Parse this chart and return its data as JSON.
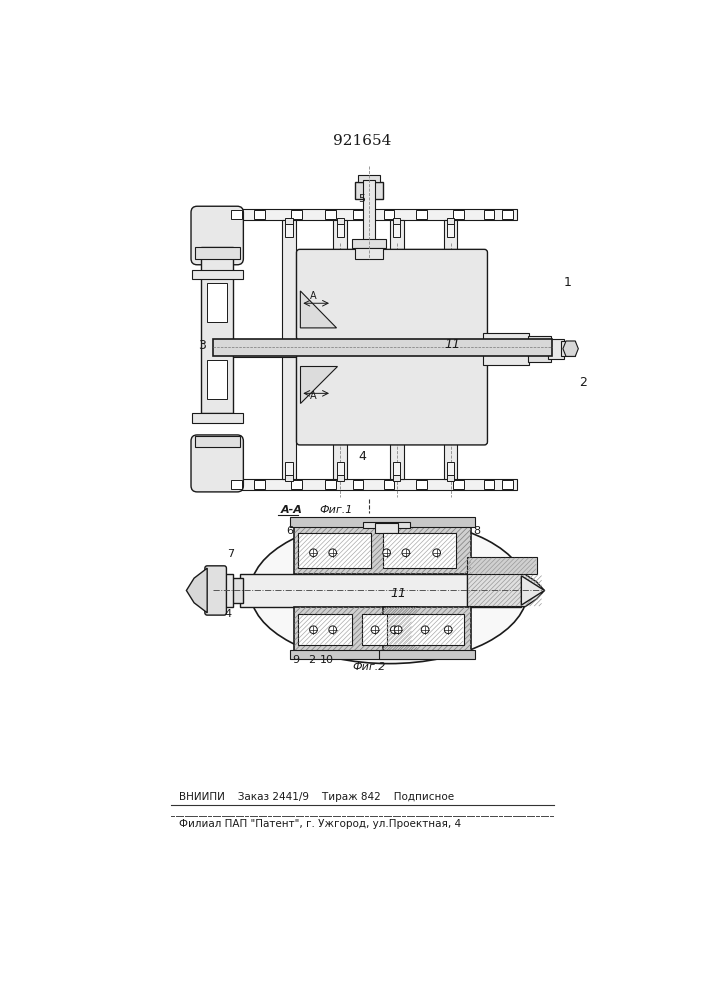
{
  "patent_number": "921654",
  "background_color": "#ffffff",
  "line_color": "#1a1a1a",
  "fig1_label": "Фиг.1",
  "fig2_label": "Фиг.2",
  "bottom_text1": "ВНИИПИ    Заказ 2441/9    Тираж 842    Подписное",
  "bottom_text2": "Филиал ПАП \"Патент\", г. Ужгород, ул.Проектная, 4",
  "label_1": "1",
  "label_2": "2",
  "label_3": "3",
  "label_4": "4",
  "label_5": "5",
  "label_6": "6",
  "label_7": "7",
  "label_8": "8",
  "label_9": "9",
  "label_10": "10",
  "label_11": "11"
}
